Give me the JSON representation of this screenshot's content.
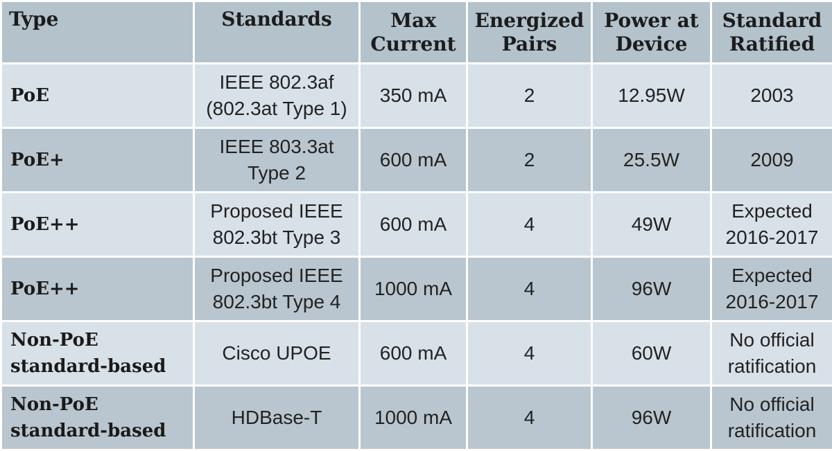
{
  "table": {
    "headers": {
      "type": "Type",
      "standards": "Standards",
      "max_current": [
        "Max",
        "Current"
      ],
      "energized_pairs": [
        "Energized",
        "Pairs"
      ],
      "power_at_device": [
        "Power at",
        "Device"
      ],
      "standard_ratified": [
        "Standard",
        "Ratified"
      ]
    },
    "rows": [
      {
        "type": [
          "PoE"
        ],
        "standards": [
          "IEEE 802.3af",
          "(802.3at Type 1)"
        ],
        "max_current": "350 mA",
        "energized_pairs": "2",
        "power_at_device": "12.95W",
        "standard_ratified": [
          "2003"
        ]
      },
      {
        "type": [
          "PoE+"
        ],
        "standards": [
          "IEEE 803.3at",
          "Type 2"
        ],
        "max_current": "600 mA",
        "energized_pairs": "2",
        "power_at_device": "25.5W",
        "standard_ratified": [
          "2009"
        ]
      },
      {
        "type": [
          "PoE++"
        ],
        "standards": [
          "Proposed IEEE",
          "802.3bt Type 3"
        ],
        "max_current": "600 mA",
        "energized_pairs": "4",
        "power_at_device": "49W",
        "standard_ratified": [
          "Expected",
          "2016-2017"
        ]
      },
      {
        "type": [
          "PoE++"
        ],
        "standards": [
          "Proposed IEEE",
          "802.3bt Type 4"
        ],
        "max_current": "1000 mA",
        "energized_pairs": "4",
        "power_at_device": "96W",
        "standard_ratified": [
          "Expected",
          "2016-2017"
        ]
      },
      {
        "type": [
          "Non-PoE",
          "standard-based"
        ],
        "standards": [
          "Cisco UPOE"
        ],
        "max_current": "600 mA",
        "energized_pairs": "4",
        "power_at_device": "60W",
        "standard_ratified": [
          "No official",
          "ratification"
        ]
      },
      {
        "type": [
          "Non-PoE",
          "standard-based"
        ],
        "standards": [
          "HDBase-T"
        ],
        "max_current": "1000 mA",
        "energized_pairs": "4",
        "power_at_device": "96W",
        "standard_ratified": [
          "No official",
          "ratification"
        ]
      }
    ]
  }
}
